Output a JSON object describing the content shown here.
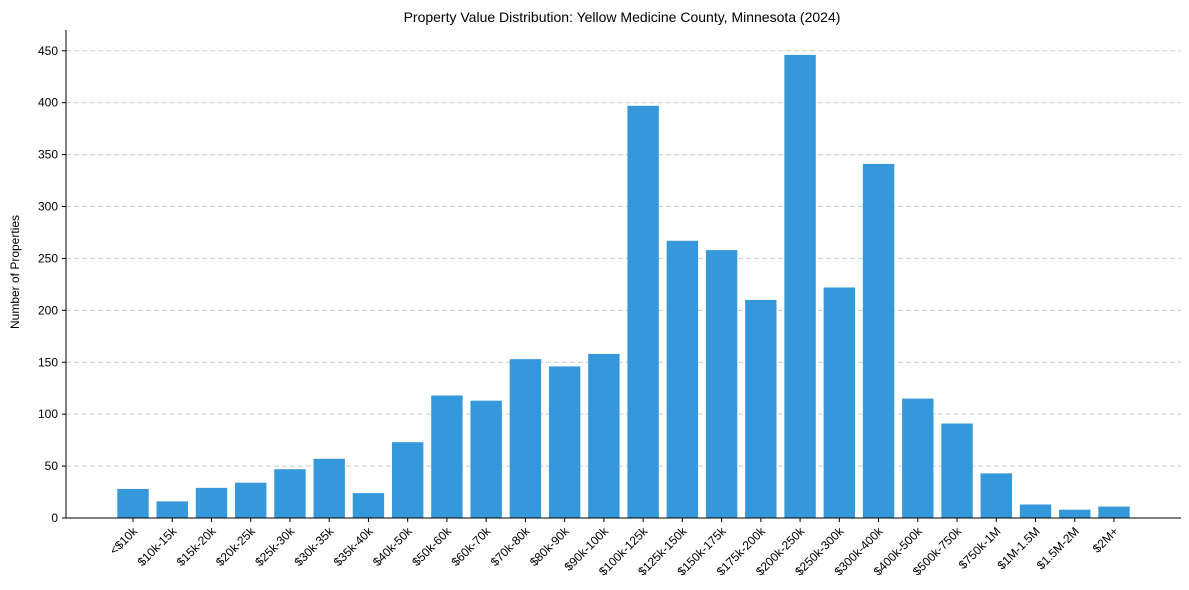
{
  "chart_data": {
    "type": "bar",
    "title": "Property Value Distribution: Yellow Medicine County, Minnesota (2024)",
    "xlabel": "",
    "ylabel": "Number of Properties",
    "ylim": [
      0,
      470
    ],
    "yticks": [
      0,
      50,
      100,
      150,
      200,
      250,
      300,
      350,
      400,
      450
    ],
    "grid": "horizontal-dashed",
    "bar_color": "#3498db",
    "grid_color": "#cccccc",
    "categories": [
      "<$10k",
      "$10k-15k",
      "$15k-20k",
      "$20k-25k",
      "$25k-30k",
      "$30k-35k",
      "$35k-40k",
      "$40k-50k",
      "$50k-60k",
      "$60k-70k",
      "$70k-80k",
      "$80k-90k",
      "$90k-100k",
      "$100k-125k",
      "$125k-150k",
      "$150k-175k",
      "$175k-200k",
      "$200k-250k",
      "$250k-300k",
      "$300k-400k",
      "$400k-500k",
      "$500k-750k",
      "$750k-1M",
      "$1M-1.5M",
      "$1.5M-2M",
      "$2M+"
    ],
    "values": [
      28,
      16,
      29,
      34,
      47,
      57,
      24,
      73,
      118,
      113,
      153,
      146,
      158,
      397,
      267,
      258,
      210,
      446,
      222,
      341,
      115,
      91,
      43,
      13,
      8,
      11
    ]
  }
}
